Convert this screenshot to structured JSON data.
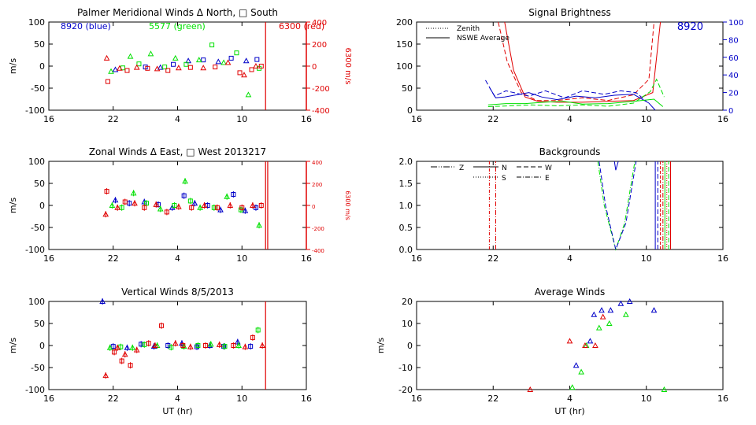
{
  "colors": {
    "blue": "#0000c8",
    "green": "#00e000",
    "red": "#e00000",
    "axis": "#000000"
  },
  "chart_data": [
    {
      "id": "meridional",
      "type": "scatter",
      "title": "Palmer Meridional Winds Δ North, □ South",
      "ylabel": "m/s",
      "y2label": "6300 m/s",
      "xlabel": "",
      "x_ticks": [
        "16",
        "22",
        "4",
        "10",
        "16"
      ],
      "y_ticks": [
        "100",
        "50",
        "0",
        "-50",
        "-100"
      ],
      "y2_ticks": [
        "400",
        "200",
        "0",
        "-200",
        "-400"
      ],
      "ylim": [
        -100,
        100
      ],
      "legend": [
        "8920 (blue)",
        "5577 (green)",
        "6300 (red)"
      ],
      "vlines": [
        {
          "x": 12.2,
          "color": "red"
        }
      ],
      "series": [
        {
          "name": "8920 (blue)",
          "color": "blue",
          "x": [
            22.2,
            1.0,
            2.4,
            3.6,
            5.0,
            6.4,
            7.8,
            9.0,
            10.4,
            11.4
          ],
          "y": [
            -8,
            -2,
            -3,
            4,
            12,
            14,
            10,
            18,
            12,
            15
          ]
        },
        {
          "name": "5577 (green)",
          "color": "green",
          "x": [
            21.8,
            22.9,
            23.6,
            0.4,
            1.5,
            2.8,
            3.8,
            4.8,
            6.0,
            7.2,
            8.3,
            9.5,
            10.6,
            11.6
          ],
          "y": [
            -12,
            -4,
            22,
            5,
            28,
            -2,
            18,
            4,
            14,
            48,
            8,
            30,
            -65,
            -5
          ]
        },
        {
          "name": "6300 (red)",
          "color": "red",
          "x": [
            21.4,
            21.5,
            22.6,
            23.3,
            0.2,
            1.2,
            2.1,
            3.1,
            4.1,
            5.2,
            6.4,
            7.5,
            8.7,
            9.8,
            10.2,
            10.9,
            11.3,
            11.8
          ],
          "y": [
            18,
            -35,
            -5,
            -10,
            -3,
            -5,
            -6,
            -10,
            -4,
            -3,
            -4,
            -2,
            8,
            -15,
            -20,
            -8,
            0,
            0
          ]
        }
      ]
    },
    {
      "id": "brightness",
      "type": "line",
      "title": "Signal Brightness",
      "ylabel": "",
      "y2label": "",
      "xlabel": "",
      "x_ticks": [
        "16",
        "22",
        "4",
        "10",
        "16"
      ],
      "y_ticks": [
        "200",
        "150",
        "100",
        "50",
        "0"
      ],
      "y2_ticks": [
        "100",
        "80",
        "60",
        "40",
        "20",
        "0"
      ],
      "ylim": [
        0,
        200
      ],
      "legend": [
        "Zenith",
        "NSWE Average"
      ],
      "label_8920": "8920"
    },
    {
      "id": "zonal",
      "type": "scatter",
      "title": "Zonal Winds Δ East, □ West 2013217",
      "ylabel": "m/s",
      "y2label": "6300 m/s",
      "xlabel": "",
      "x_ticks": [
        "16",
        "22",
        "4",
        "10",
        "16"
      ],
      "y_ticks": [
        "100",
        "50",
        "0",
        "-50",
        "-100"
      ],
      "y2_ticks": [
        "400",
        "200",
        "0",
        "-200",
        "-400"
      ],
      "ylim": [
        -100,
        100
      ],
      "vlines": [
        {
          "x": 12.2,
          "color": "red"
        },
        {
          "x": 12.4,
          "color": "red"
        }
      ],
      "series": [
        {
          "name": "8920 (blue)",
          "color": "blue",
          "x": [
            22.2,
            23.5,
            0.9,
            2.2,
            3.5,
            4.6,
            5.6,
            6.8,
            8.0,
            9.2,
            10.3,
            11.3
          ],
          "y": [
            12,
            5,
            8,
            2,
            -5,
            22,
            5,
            0,
            -10,
            25,
            -12,
            -5
          ]
        },
        {
          "name": "5577 (green)",
          "color": "green",
          "x": [
            21.9,
            22.8,
            23.9,
            1.1,
            2.4,
            3.7,
            4.7,
            5.2,
            6.1,
            7.4,
            8.6,
            9.9,
            11.6
          ],
          "y": [
            0,
            -5,
            28,
            5,
            -8,
            0,
            55,
            10,
            -5,
            -5,
            20,
            -10,
            -45
          ]
        },
        {
          "name": "6300 (red)",
          "color": "red",
          "x": [
            21.3,
            21.4,
            22.4,
            23.1,
            0.0,
            0.9,
            2.0,
            3.0,
            4.1,
            5.3,
            6.5,
            7.7,
            8.9,
            10.0,
            11.0,
            11.8
          ],
          "y": [
            -20,
            32,
            -5,
            8,
            5,
            -5,
            2,
            -15,
            -3,
            -5,
            0,
            -5,
            0,
            -5,
            0,
            0
          ]
        }
      ]
    },
    {
      "id": "backgrounds",
      "type": "line",
      "title": "Backgrounds",
      "ylabel": "",
      "y2label": "",
      "xlabel": "",
      "x_ticks": [
        "16",
        "22",
        "4",
        "10",
        "16"
      ],
      "y_ticks": [
        "2.0",
        "1.5",
        "1.0",
        "0.5",
        "0.0"
      ],
      "ylim": [
        0,
        2
      ],
      "legend": [
        "Z",
        "N",
        "W",
        "S",
        "E"
      ]
    },
    {
      "id": "vertical",
      "type": "scatter",
      "title": "Vertical Winds 8/5/2013",
      "ylabel": "m/s",
      "y2label": "",
      "xlabel": "UT (hr)",
      "x_ticks": [
        "16",
        "22",
        "4",
        "10",
        "16"
      ],
      "y_ticks": [
        "100",
        "50",
        "0",
        "-50",
        "-100"
      ],
      "ylim": [
        -100,
        100
      ],
      "vlines": [
        {
          "x": 12.2,
          "color": "red"
        }
      ],
      "series": [
        {
          "name": "8920 (blue)",
          "color": "blue",
          "x": [
            21.0,
            22.0,
            23.3,
            0.6,
            1.8,
            3.1,
            4.4,
            5.8,
            7.0,
            8.3,
            9.6,
            10.8
          ],
          "y": [
            100,
            -2,
            -5,
            3,
            -2,
            0,
            5,
            -3,
            0,
            -2,
            8,
            -2
          ]
        },
        {
          "name": "5577 (green)",
          "color": "green",
          "x": [
            21.7,
            22.7,
            23.8,
            0.9,
            2.1,
            3.4,
            4.6,
            5.9,
            7.1,
            8.4,
            9.7,
            11.5
          ],
          "y": [
            -5,
            -3,
            -5,
            2,
            0,
            -4,
            -2,
            0,
            3,
            -2,
            0,
            35
          ]
        },
        {
          "name": "6300 (red)",
          "color": "red",
          "x": [
            21.3,
            22.1,
            22.4,
            22.8,
            23.1,
            23.6,
            0.2,
            1.3,
            1.9,
            2.5,
            3.8,
            4.5,
            5.2,
            6.6,
            7.9,
            9.2,
            10.3,
            11.0,
            11.9
          ],
          "y": [
            -68,
            -15,
            -5,
            -35,
            -20,
            -45,
            -10,
            5,
            0,
            45,
            5,
            0,
            -3,
            0,
            2,
            0,
            -3,
            18,
            0
          ]
        }
      ]
    },
    {
      "id": "average",
      "type": "scatter",
      "title": "Average Winds",
      "ylabel": "m/s",
      "y2label": "",
      "xlabel": "UT (hr)",
      "x_ticks": [
        "16",
        "22",
        "4",
        "10",
        "16"
      ],
      "y_ticks": [
        "20",
        "10",
        "0",
        "-10",
        "-20"
      ],
      "ylim": [
        -20,
        20
      ],
      "series": [
        {
          "name": "8920 (blue)",
          "color": "blue",
          "x": [
            4.5,
            5.6,
            5.9,
            6.5,
            7.2,
            8.0,
            8.7,
            10.6
          ],
          "y": [
            -9,
            2,
            14,
            16,
            16,
            19,
            20,
            16
          ]
        },
        {
          "name": "5577 (green)",
          "color": "green",
          "x": [
            4.2,
            4.9,
            5.3,
            6.3,
            7.1,
            8.4,
            11.4
          ],
          "y": [
            -19,
            -12,
            0,
            8,
            10,
            14,
            -20
          ]
        },
        {
          "name": "6300 (red)",
          "color": "red",
          "x": [
            24.9,
            4.0,
            5.2,
            6.0,
            6.6
          ],
          "y": [
            -20,
            2,
            0,
            0,
            13
          ]
        }
      ]
    }
  ]
}
